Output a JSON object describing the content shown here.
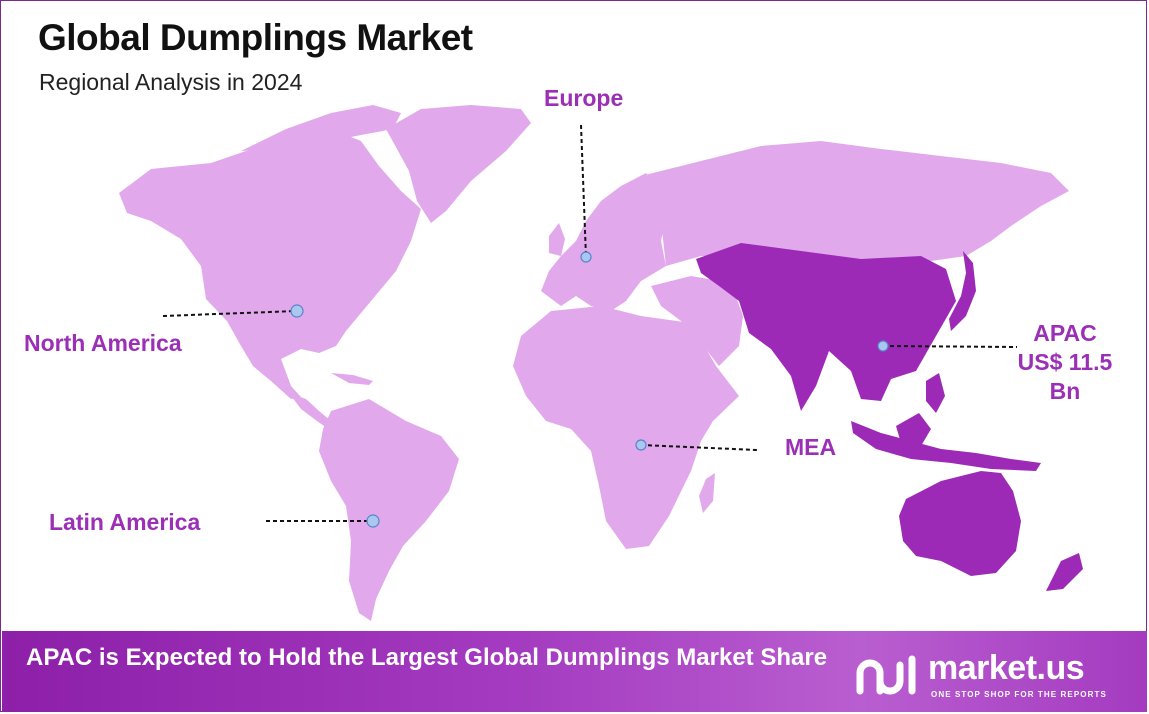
{
  "header": {
    "title": "Global Dumplings Market",
    "subtitle": "Regional Analysis in 2024"
  },
  "regions": {
    "europe": "Europe",
    "north_america": "North America",
    "mea": "MEA",
    "latin_america": "Latin America",
    "apac_name": "APAC",
    "apac_value": "US$ 11.5",
    "apac_unit": "Bn"
  },
  "highlighted_region": "APAC",
  "colors": {
    "highlight": "#9b2fb5",
    "land": "#e1a9eb",
    "apac_land": "#9c2ab6",
    "marker": "#a8c8f0",
    "footer": "#9b2fb5"
  },
  "footer": {
    "headline": "APAC is Expected to Hold the Largest Global Dumplings Market Share",
    "brand": "market.us",
    "tagline": "ONE STOP SHOP FOR THE REPORTS"
  }
}
